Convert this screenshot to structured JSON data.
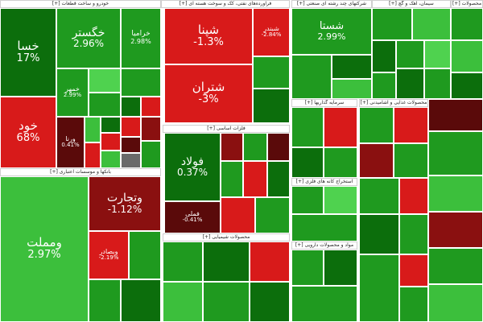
{
  "chart_data": {
    "type": "heatmap",
    "colors": {
      "dark_green": "#0c6e0c",
      "green": "#1f9a1f",
      "light_green": "#3cbf3c",
      "bright_green": "#4fd24f",
      "red": "#d81a1a",
      "dark_red": "#8a1010",
      "maroon": "#5a0a0a",
      "gray": "#6a6a6a"
    },
    "sectors": [
      {
        "name": "خودرو و ساخت قطعات [+]"
      },
      {
        "name": "فراورده‌های نفتی، کک و سوخت هسته ای [+]"
      },
      {
        "name": "شرکتهای چند رشته ای صنعتی [+]"
      },
      {
        "name": "سیمان، آهک و گچ [+]"
      },
      {
        "name": "محصولات [+]"
      },
      {
        "name": "بانکها و موسسات اعتباری [+]"
      },
      {
        "name": "فلزات اساسی [+]"
      },
      {
        "name": "محصولات شیمیایی [+]"
      },
      {
        "name": "سرمایه گذاریها [+]"
      },
      {
        "name": "محصولات غذایی و آشامیدنی [+]"
      },
      {
        "name": "استخراج کانه های فلزی [+]"
      },
      {
        "name": "مواد و محصولات دارویی [+]"
      }
    ],
    "tiles": [
      {
        "symbol": "خسا",
        "change": "17%",
        "color": "dark_green"
      },
      {
        "symbol": "خگستر",
        "change": "2.96%",
        "color": "green"
      },
      {
        "symbol": "خراميا",
        "change": "2.98%",
        "color": "green"
      },
      {
        "symbol": "خود",
        "change": "68%",
        "color": "red"
      },
      {
        "symbol": "خمهر",
        "change": "2.99%",
        "color": "green"
      },
      {
        "symbol": "ورنا",
        "change": "0.41%",
        "color": "maroon"
      },
      {
        "symbol": "شپنا",
        "change": "-1.3%",
        "color": "red"
      },
      {
        "symbol": "شتران",
        "change": "-3%",
        "color": "red"
      },
      {
        "symbol": "شبندر",
        "change": "-2.84%",
        "color": "red"
      },
      {
        "symbol": "شستا",
        "change": "2.99%",
        "color": "green"
      },
      {
        "symbol": "ومملت",
        "change": "2.97%",
        "color": "light_green"
      },
      {
        "symbol": "وتجارت",
        "change": "-1.12%",
        "color": "dark_red"
      },
      {
        "symbol": "وبصادر",
        "change": "-2.19%",
        "color": "red"
      },
      {
        "symbol": "فولاد",
        "change": "0.37%",
        "color": "dark_green"
      },
      {
        "symbol": "فملی",
        "change": "-0.41%",
        "color": "maroon"
      }
    ]
  }
}
